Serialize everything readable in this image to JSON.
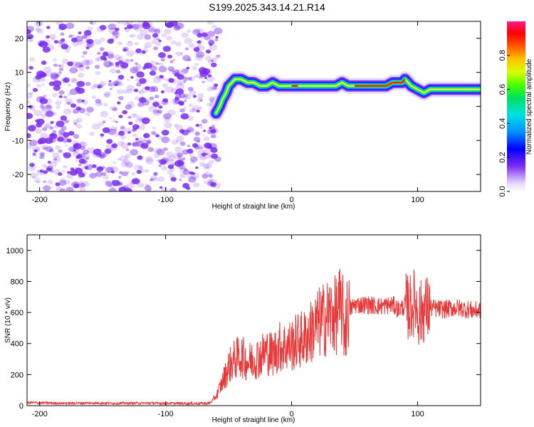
{
  "title": "S199.2025.343.14.21.R14",
  "colors": {
    "noise": "#7a2cf0",
    "snr_line": "#e83a3a",
    "axis": "#000000"
  },
  "chart_data": [
    {
      "type": "heatmap",
      "panel": "spectrogram",
      "xlabel": "Height of straight line (km)",
      "ylabel": "Frequency (Hz)",
      "xlim": [
        -210,
        150
      ],
      "ylim": [
        -25,
        25
      ],
      "xticks": [
        -200,
        -100,
        0,
        100
      ],
      "yticks": [
        -20,
        -10,
        0,
        10,
        20
      ],
      "noise_region_x": [
        -210,
        -60
      ],
      "tone_track": {
        "x": [
          -60,
          -57,
          -55,
          -52,
          -50,
          -45,
          -40,
          -35,
          -30,
          -25,
          -20,
          -15,
          -10,
          -5,
          0,
          5,
          10,
          15,
          20,
          25,
          30,
          35,
          40,
          45,
          50,
          55,
          60,
          65,
          70,
          75,
          80,
          85,
          88,
          90,
          95,
          100,
          105,
          110,
          120,
          130,
          140,
          150
        ],
        "freq_hz": [
          -2,
          0,
          2,
          4,
          6,
          8,
          8,
          7,
          7,
          6,
          6,
          7,
          6,
          6,
          6,
          6,
          6,
          6,
          6,
          6,
          6,
          6,
          7,
          6,
          6,
          6,
          6,
          6,
          6,
          6,
          7,
          7,
          7,
          8,
          6,
          5,
          4,
          5,
          5,
          5,
          5,
          5
        ]
      },
      "colorbar": {
        "label": "Normalized spectral amplitude",
        "range": [
          0,
          1
        ],
        "ticks": [
          0.0,
          0.2,
          0.4,
          0.6,
          0.8
        ],
        "tick_labels": [
          "0.0",
          "0.2",
          "0.4",
          "0.6",
          "0.8"
        ]
      }
    },
    {
      "type": "line",
      "panel": "snr",
      "xlabel": "Height of straight line (km)",
      "ylabel": "SNR (10 * v/v)",
      "xlim": [
        -210,
        150
      ],
      "ylim": [
        0,
        1100
      ],
      "xticks": [
        -200,
        -100,
        0,
        100
      ],
      "yticks": [
        0,
        200,
        400,
        600,
        800,
        1000
      ],
      "series": [
        {
          "name": "SNR",
          "x": [
            -210,
            -200,
            -180,
            -160,
            -140,
            -120,
            -100,
            -80,
            -65,
            -60,
            -55,
            -50,
            -45,
            -40,
            -35,
            -30,
            -25,
            -20,
            -15,
            -10,
            -5,
            0,
            5,
            10,
            15,
            20,
            25,
            30,
            35,
            38,
            40,
            42,
            45,
            50,
            55,
            60,
            70,
            80,
            85,
            90,
            95,
            98,
            100,
            102,
            105,
            110,
            120,
            130,
            140,
            145,
            150
          ],
          "values": [
            20,
            18,
            15,
            17,
            15,
            16,
            15,
            14,
            15,
            60,
            150,
            250,
            300,
            320,
            280,
            300,
            320,
            350,
            330,
            380,
            380,
            390,
            420,
            430,
            470,
            520,
            550,
            580,
            580,
            620,
            640,
            500,
            610,
            650,
            650,
            650,
            640,
            650,
            620,
            640,
            630,
            680,
            600,
            590,
            620,
            630,
            620,
            630,
            620,
            610,
            620
          ]
        }
      ]
    }
  ]
}
